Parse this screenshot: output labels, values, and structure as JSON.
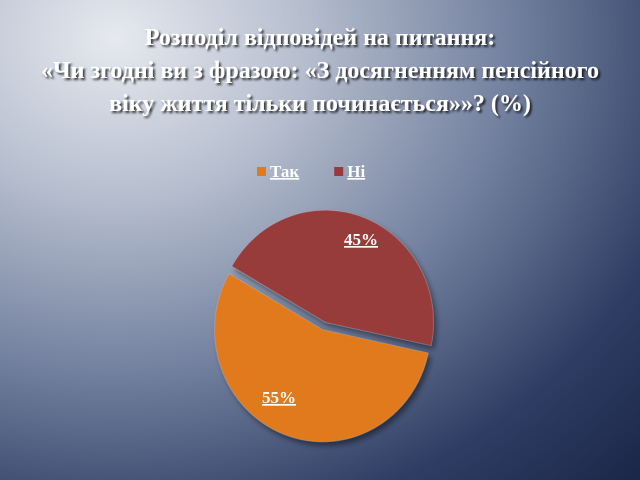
{
  "chart_data": {
    "type": "pie",
    "title": [
      "Розподіл відповідей  на питання:",
      "«Чи згодні ви з фразою: «З досягненням пенсійного",
      "віку життя тільки починається»»? (%)"
    ],
    "categories": [
      "Так",
      "Ні"
    ],
    "values": [
      55,
      45
    ],
    "value_labels": [
      "55%",
      "45%"
    ],
    "colors": [
      "#e07a1f",
      "#983a3a"
    ],
    "legend": "top"
  }
}
